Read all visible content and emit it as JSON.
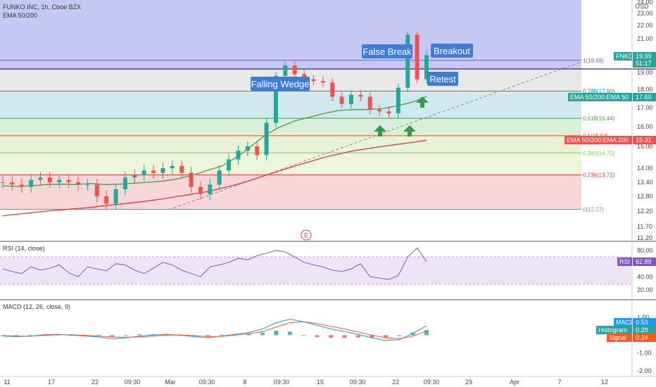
{
  "header": {
    "symbol_line": "FUNKO INC, 1h, Cboe BZX",
    "indicator_line": "EMA 50/200",
    "currency": "USD"
  },
  "panels": {
    "rsi_label": "RSI (14, close)",
    "macd_label": "MACD (12, 26, close, 9)"
  },
  "chart_data": [
    {
      "type": "candlestick",
      "title": "FUNKO INC, 1h, Cboe BZX",
      "ylim": [
        11.0,
        24.0
      ],
      "y_ticks": [
        "24.00",
        "23.00",
        "22.00",
        "21.00",
        "20.00",
        "19.00",
        "18.00",
        "17.00",
        "16.00",
        "15.00",
        "14.00",
        "13.40",
        "12.80",
        "12.20",
        "11.70",
        "11.20"
      ],
      "x_ticks": [
        "11",
        "17",
        "22",
        "09:30",
        "Mar",
        "09:30",
        "8",
        "09:30",
        "15",
        "09:30",
        "22",
        "09:30",
        "29",
        "Apr",
        "7",
        "12"
      ],
      "fibonacci": [
        {
          "level": "1",
          "price": 19.69,
          "label": "1(19.69)",
          "color": "#7e57c2"
        },
        {
          "level": "0.786",
          "price": 17.9,
          "label": "0.786(17.90)",
          "color": "#0097a7"
        },
        {
          "level": "0.618",
          "price": 16.44,
          "label": "0.618(16.44)",
          "color": "#43a047"
        },
        {
          "level": "0.5",
          "price": 15.54,
          "label": "0.5(15.54)",
          "color": "#e65100"
        },
        {
          "level": "0.382",
          "price": 14.7,
          "label": "0.382(14.70)",
          "color": "#8bc34a"
        },
        {
          "level": "0.236",
          "price": 13.72,
          "label": "0.236(13.72)",
          "color": "#e53935"
        },
        {
          "level": "0",
          "price": 12.27,
          "label": "0(12.27)",
          "color": "#888888"
        }
      ],
      "price_tags": [
        {
          "label": "FNKO",
          "value": "19.99",
          "sub": "51:17",
          "color": "#26a69a"
        },
        {
          "label": "EMA 50/200:EMA 50",
          "value": "17.60",
          "color": "#26a69a"
        },
        {
          "label": "EMA 50/200:EMA 200",
          "value": "15.31",
          "color": "#ef5350"
        }
      ],
      "annotations": [
        "Falling Wedge",
        "False Break",
        "Breakout",
        "Retest"
      ],
      "earnings_marker": "E",
      "series": [
        {
          "name": "EMA 50",
          "color": "#43a047",
          "values": [
            13.25,
            13.22,
            13.25,
            13.3,
            13.32,
            13.3,
            13.35,
            13.3,
            13.32,
            13.36,
            13.4,
            13.45,
            13.55,
            13.7,
            13.9,
            14.1,
            14.5,
            15.0,
            15.6,
            16.0,
            16.3,
            16.5,
            16.7,
            16.85,
            16.9,
            16.9,
            16.95,
            17.1,
            17.3,
            17.6
          ]
        },
        {
          "name": "EMA 200",
          "color": "#e53935",
          "values": [
            12.05,
            12.1,
            12.15,
            12.2,
            12.25,
            12.3,
            12.35,
            12.42,
            12.48,
            12.55,
            12.62,
            12.7,
            12.8,
            12.9,
            13.0,
            13.15,
            13.3,
            13.5,
            13.7,
            13.9,
            14.1,
            14.3,
            14.5,
            14.65,
            14.8,
            14.9,
            15.0,
            15.1,
            15.2,
            15.31
          ]
        }
      ],
      "close_values": [
        13.4,
        13.3,
        13.2,
        13.5,
        13.6,
        13.4,
        13.5,
        13.4,
        13.3,
        13.3,
        12.8,
        12.5,
        13.1,
        13.6,
        13.7,
        13.9,
        13.8,
        14.0,
        14.1,
        13.8,
        13.2,
        12.9,
        13.3,
        13.9,
        14.4,
        14.8,
        15.0,
        14.6,
        16.2,
        18.8,
        19.4,
        18.9,
        18.6,
        18.5,
        18.4,
        17.6,
        17.2,
        17.7,
        17.6,
        16.9,
        16.8,
        16.7,
        18.1,
        21.3,
        18.6,
        19.99
      ]
    },
    {
      "type": "line",
      "title": "RSI (14, close)",
      "ylim": [
        0,
        90
      ],
      "y_ticks": [
        "80.00",
        "60.00",
        "40.00",
        "20.00"
      ],
      "band": [
        30,
        70
      ],
      "tag": {
        "label": "RSI",
        "value": "62.89",
        "color": "#7e57c2"
      },
      "values": [
        52,
        48,
        45,
        55,
        50,
        53,
        58,
        46,
        40,
        55,
        52,
        49,
        60,
        58,
        50,
        45,
        53,
        62,
        58,
        50,
        45,
        40,
        55,
        58,
        62,
        68,
        66,
        72,
        76,
        80,
        78,
        70,
        62,
        58,
        55,
        50,
        48,
        52,
        60,
        40,
        38,
        36,
        42,
        70,
        84,
        63
      ]
    },
    {
      "type": "line",
      "title": "MACD (12, 26, close, 9)",
      "ylim": [
        -2.0,
        1.0
      ],
      "y_ticks": [
        "1.00",
        "0.00",
        "-1.00",
        "-2.00"
      ],
      "tags": [
        {
          "label": "MACD",
          "value": "0.53",
          "color": "#2196f3"
        },
        {
          "label": "Histogram",
          "value": "0.28",
          "color": "#26a69a"
        },
        {
          "label": "Signal",
          "value": "0.24",
          "color": "#ff5722"
        }
      ],
      "series": [
        {
          "name": "MACD",
          "color": "#2196f3",
          "values": [
            -0.05,
            -0.08,
            -0.06,
            0.02,
            0.05,
            0.0,
            -0.05,
            -0.1,
            -0.2,
            -0.15,
            -0.05,
            0.0,
            0.05,
            0.0,
            -0.08,
            -0.15,
            -0.05,
            0.05,
            0.15,
            0.35,
            0.7,
            0.9,
            0.75,
            0.55,
            0.35,
            0.2,
            0.05,
            -0.15,
            -0.3,
            -0.25,
            0.1,
            0.53
          ]
        },
        {
          "name": "Signal",
          "color": "#ff5722",
          "values": [
            -0.03,
            -0.05,
            -0.06,
            -0.02,
            0.02,
            0.02,
            -0.01,
            -0.05,
            -0.1,
            -0.12,
            -0.1,
            -0.05,
            0.0,
            0.01,
            -0.03,
            -0.08,
            -0.07,
            0.0,
            0.08,
            0.2,
            0.45,
            0.7,
            0.75,
            0.65,
            0.5,
            0.35,
            0.18,
            0.0,
            -0.15,
            -0.2,
            -0.05,
            0.24
          ]
        }
      ]
    }
  ]
}
